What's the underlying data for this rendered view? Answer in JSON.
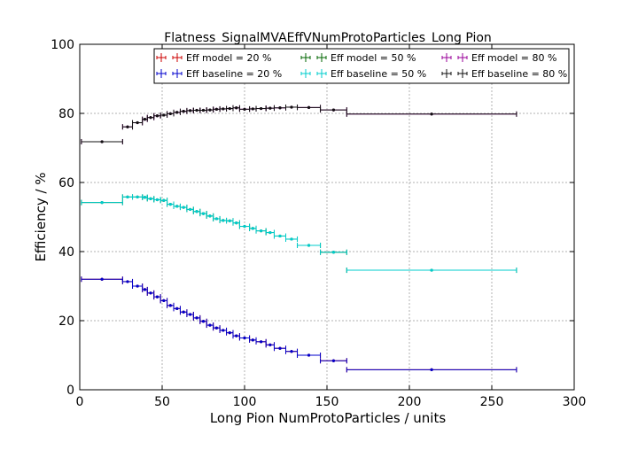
{
  "chart_data": {
    "type": "scatter",
    "title": "Flatness_SignalMVAEffVNumProtoParticles_Long Pion",
    "xlabel": "Long Pion NumProtoParticles / units",
    "ylabel": "Efficiency / %",
    "xlim": [
      0,
      300
    ],
    "ylim": [
      0,
      100
    ],
    "xticks": [
      0,
      50,
      100,
      150,
      200,
      250,
      300
    ],
    "yticks": [
      0,
      20,
      40,
      60,
      80,
      100
    ],
    "grid": true,
    "legend_position": "top-center",
    "bins": {
      "x": [
        13.5,
        29.0,
        35.0,
        39.5,
        43.0,
        47.0,
        51.0,
        55.0,
        59.0,
        63.0,
        67.0,
        71.0,
        75.0,
        79.0,
        83.0,
        87.0,
        91.0,
        95.0,
        100.0,
        105.0,
        110.0,
        115.5,
        121.5,
        128.5,
        139.0,
        154.0,
        213.5
      ],
      "x_low": [
        1,
        26,
        32,
        38,
        41,
        45,
        49,
        53,
        57,
        61,
        65,
        69,
        73,
        77,
        81,
        85,
        89,
        93,
        97,
        103,
        107,
        113,
        118,
        125,
        132,
        146,
        162
      ],
      "x_high": [
        26,
        32,
        38,
        41,
        45,
        49,
        53,
        57,
        61,
        65,
        69,
        73,
        77,
        81,
        85,
        89,
        93,
        97,
        103,
        107,
        113,
        118,
        125,
        132,
        146,
        162,
        265
      ]
    },
    "series": [
      {
        "name": "Eff model = 20 %",
        "color": "#cc0000",
        "values": [
          32.0,
          31.3,
          30.0,
          29.0,
          28.0,
          26.9,
          25.8,
          24.4,
          23.5,
          22.5,
          21.8,
          20.8,
          19.8,
          18.7,
          17.9,
          17.2,
          16.5,
          15.6,
          15.0,
          14.4,
          13.9,
          13.0,
          12.0,
          11.1,
          10.0,
          8.4,
          5.8
        ]
      },
      {
        "name": "Eff baseline = 20 %",
        "color": "#0000cc",
        "values": [
          32.0,
          31.3,
          30.0,
          29.0,
          28.0,
          26.9,
          25.8,
          24.4,
          23.5,
          22.5,
          21.8,
          20.8,
          19.8,
          18.7,
          17.9,
          17.2,
          16.5,
          15.6,
          15.0,
          14.4,
          13.9,
          13.0,
          12.0,
          11.1,
          10.0,
          8.4,
          5.8
        ]
      },
      {
        "name": "Eff model = 50 %",
        "color": "#006600",
        "values": [
          54.2,
          55.8,
          55.8,
          55.7,
          55.3,
          55.0,
          54.8,
          53.7,
          53.1,
          52.8,
          52.2,
          51.6,
          51.0,
          50.3,
          49.5,
          49.0,
          48.9,
          48.3,
          47.3,
          46.7,
          46.0,
          45.5,
          44.5,
          43.6,
          41.8,
          39.8,
          34.6
        ]
      },
      {
        "name": "Eff baseline = 50 %",
        "color": "#00cccc",
        "values": [
          54.2,
          55.8,
          55.8,
          55.7,
          55.3,
          55.0,
          54.8,
          53.7,
          53.1,
          52.8,
          52.2,
          51.6,
          51.0,
          50.3,
          49.5,
          49.0,
          48.9,
          48.3,
          47.3,
          46.7,
          46.0,
          45.5,
          44.5,
          43.6,
          41.8,
          39.8,
          34.6
        ]
      },
      {
        "name": "Eff model = 80 %",
        "color": "#990099",
        "values": [
          71.8,
          76.1,
          77.3,
          78.3,
          78.8,
          79.3,
          79.5,
          79.9,
          80.3,
          80.6,
          80.8,
          80.9,
          80.9,
          81.0,
          81.2,
          81.3,
          81.4,
          81.6,
          81.2,
          81.3,
          81.4,
          81.5,
          81.6,
          81.8,
          81.7,
          81.0,
          79.8
        ]
      },
      {
        "name": "Eff baseline = 80 %",
        "color": "#111111",
        "values": [
          71.8,
          76.1,
          77.3,
          78.3,
          78.8,
          79.3,
          79.5,
          79.9,
          80.3,
          80.6,
          80.8,
          80.9,
          80.9,
          81.0,
          81.2,
          81.3,
          81.4,
          81.6,
          81.2,
          81.3,
          81.4,
          81.5,
          81.6,
          81.8,
          81.7,
          81.0,
          79.8
        ]
      }
    ]
  }
}
